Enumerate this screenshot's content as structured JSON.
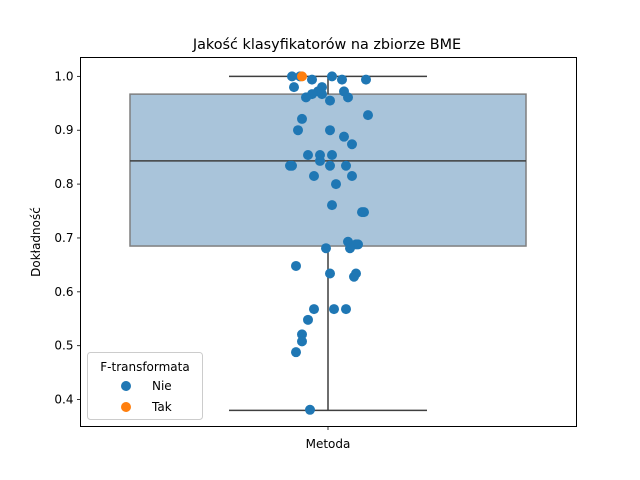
{
  "chart_data": {
    "type": "scatter",
    "title": "Jakość klasyfikatorów na zbiorze BME",
    "xlabel": "",
    "ylabel": "Dokładność",
    "x_category": "Metoda",
    "ylim": [
      0.35,
      1.035
    ],
    "yticks": [
      0.4,
      0.5,
      0.6,
      0.7,
      0.8,
      0.9,
      1.0
    ],
    "ytick_labels": [
      "0.4",
      "0.5",
      "0.6",
      "0.7",
      "0.8",
      "0.9",
      "1.0"
    ],
    "grid": false,
    "box": {
      "min": 0.38,
      "q1": 0.685,
      "median": 0.843,
      "q3": 0.967,
      "max": 1.0,
      "fill_color": "#a9c4da",
      "edge_color": "#7f7f7f"
    },
    "legend": {
      "title": "F-transformata",
      "placement": "lower-left",
      "entries": [
        {
          "label": "Nie",
          "color": "#1f77b4"
        },
        {
          "label": "Tak",
          "color": "#ff7f0e"
        }
      ]
    },
    "series": [
      {
        "name": "Nie",
        "color": "#1f77b4",
        "points": [
          {
            "x": -0.18,
            "y": 1.0
          },
          {
            "x": -0.14,
            "y": 1.0
          },
          {
            "x": -0.08,
            "y": 0.994
          },
          {
            "x": 0.02,
            "y": 1.0
          },
          {
            "x": 0.07,
            "y": 0.994
          },
          {
            "x": 0.19,
            "y": 0.994
          },
          {
            "x": -0.17,
            "y": 0.98
          },
          {
            "x": -0.03,
            "y": 0.98
          },
          {
            "x": -0.05,
            "y": 0.972
          },
          {
            "x": -0.08,
            "y": 0.967
          },
          {
            "x": -0.03,
            "y": 0.967
          },
          {
            "x": -0.11,
            "y": 0.961
          },
          {
            "x": 0.08,
            "y": 0.972
          },
          {
            "x": 0.1,
            "y": 0.961
          },
          {
            "x": 0.01,
            "y": 0.955
          },
          {
            "x": 0.2,
            "y": 0.928
          },
          {
            "x": -0.13,
            "y": 0.921
          },
          {
            "x": -0.15,
            "y": 0.9
          },
          {
            "x": 0.01,
            "y": 0.9
          },
          {
            "x": 0.08,
            "y": 0.888
          },
          {
            "x": 0.12,
            "y": 0.874
          },
          {
            "x": -0.1,
            "y": 0.854
          },
          {
            "x": -0.04,
            "y": 0.854
          },
          {
            "x": 0.02,
            "y": 0.854
          },
          {
            "x": -0.04,
            "y": 0.843
          },
          {
            "x": -0.19,
            "y": 0.834
          },
          {
            "x": -0.18,
            "y": 0.834
          },
          {
            "x": 0.01,
            "y": 0.834
          },
          {
            "x": 0.09,
            "y": 0.834
          },
          {
            "x": -0.07,
            "y": 0.815
          },
          {
            "x": 0.12,
            "y": 0.815
          },
          {
            "x": 0.04,
            "y": 0.8
          },
          {
            "x": 0.02,
            "y": 0.761
          },
          {
            "x": 0.17,
            "y": 0.748
          },
          {
            "x": 0.18,
            "y": 0.748
          },
          {
            "x": 0.1,
            "y": 0.693
          },
          {
            "x": 0.15,
            "y": 0.688
          },
          {
            "x": 0.14,
            "y": 0.688
          },
          {
            "x": 0.11,
            "y": 0.681
          },
          {
            "x": -0.01,
            "y": 0.681
          },
          {
            "x": -0.16,
            "y": 0.648
          },
          {
            "x": 0.01,
            "y": 0.634
          },
          {
            "x": 0.14,
            "y": 0.634
          },
          {
            "x": 0.13,
            "y": 0.628
          },
          {
            "x": -0.07,
            "y": 0.568
          },
          {
            "x": 0.03,
            "y": 0.568
          },
          {
            "x": 0.09,
            "y": 0.568
          },
          {
            "x": -0.1,
            "y": 0.548
          },
          {
            "x": -0.13,
            "y": 0.521
          },
          {
            "x": -0.13,
            "y": 0.508
          },
          {
            "x": -0.16,
            "y": 0.488
          },
          {
            "x": -0.09,
            "y": 0.381
          }
        ]
      },
      {
        "name": "Tak",
        "color": "#ff7f0e",
        "points": [
          {
            "x": -0.13,
            "y": 1.0
          }
        ]
      }
    ]
  }
}
